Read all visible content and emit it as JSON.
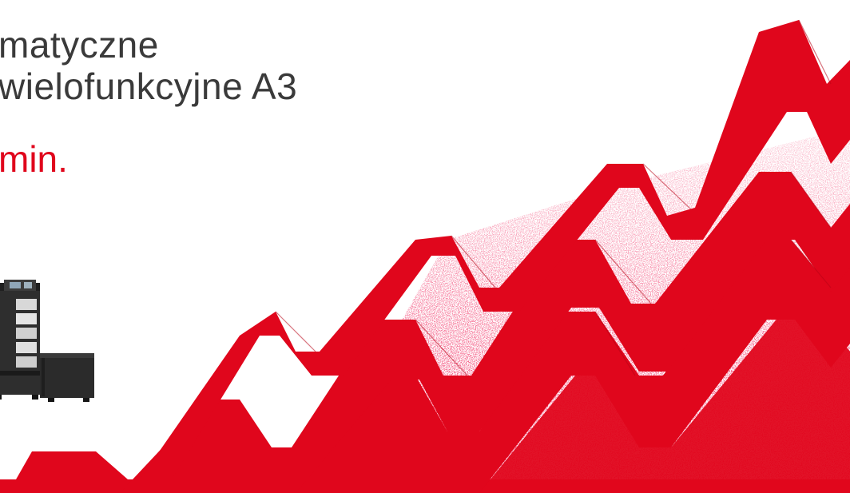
{
  "headline": {
    "line1": "matyczne",
    "line2": "wielofunkcyjne A3",
    "speed_fragment": "min."
  },
  "colors": {
    "brand_red": "#e0061c",
    "text_gray": "#3a3a3a",
    "printer_dark": "#2b2b2b"
  },
  "artwork": {
    "name": "rising-zigzag-graphic",
    "printer_image": "multifunction-printer-image"
  }
}
